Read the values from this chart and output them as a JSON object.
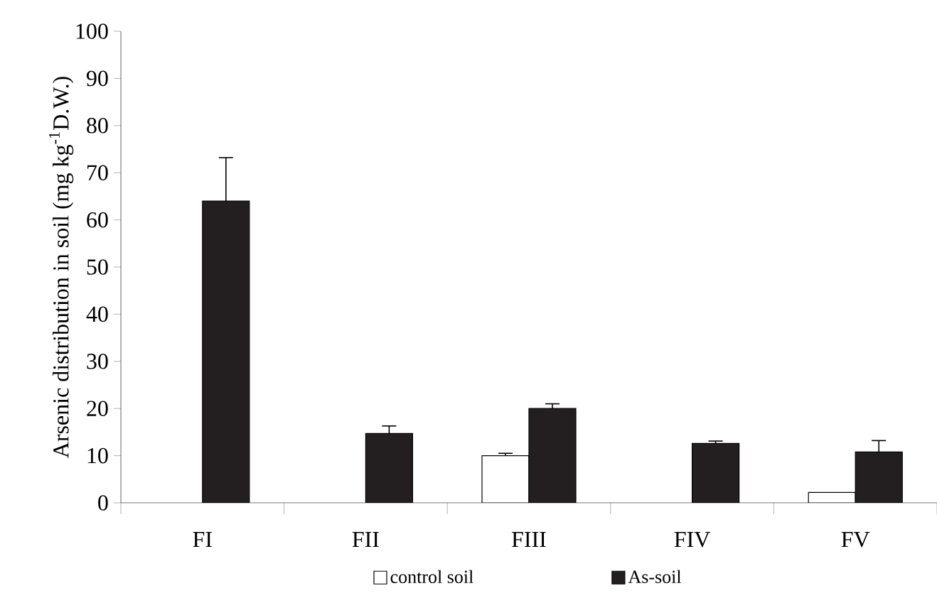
{
  "chart_data": {
    "type": "bar",
    "ylabel": "Arsenic distribution in soil (mg kg$^{-1}$D.W.)",
    "categories": [
      "FI",
      "FII",
      "FIII",
      "FIV",
      "FV"
    ],
    "series": [
      {
        "name": "control soil",
        "color": "#ffffff",
        "values": [
          0,
          0,
          10,
          0,
          2.2
        ],
        "errors": [
          null,
          null,
          0.5,
          null,
          null
        ]
      },
      {
        "name": "As-soil",
        "color": "#231f20",
        "values": [
          64,
          14.7,
          20,
          12.6,
          10.8
        ],
        "errors": [
          9.2,
          1.6,
          1,
          0.5,
          2.4
        ]
      }
    ],
    "ylim": [
      0,
      100
    ],
    "yticks": [
      0,
      10,
      20,
      30,
      40,
      50,
      60,
      70,
      80,
      90,
      100
    ],
    "legend": "bottom",
    "grid": false
  }
}
